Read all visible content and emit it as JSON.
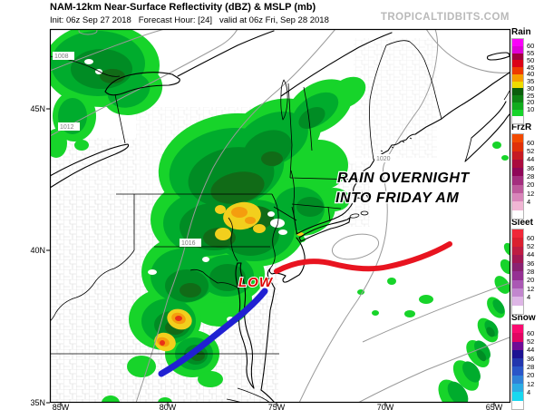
{
  "header": {
    "title": "NAM-12km Near-Surface Reflectivity (dBZ) & MSLP (mb)",
    "init_line": "Init: 06z Sep 27 2018   Forecast Hour: [24]   valid at 06z Fri, Sep 28 2018",
    "watermark": "TROPICALTIDBITS.COM"
  },
  "map": {
    "annotations": {
      "rain_line1": "RAIN OVERNIGHT",
      "rain_line2": "INTO FRIDAY AM",
      "low_label": "LOW"
    },
    "pressure_labels": [
      "1008",
      "1012",
      "1016",
      "1020"
    ],
    "front_colors": {
      "warm": "#e81420",
      "cold": "#2020d2"
    }
  },
  "axes": {
    "lat": [
      "45N",
      "40N",
      "35N"
    ],
    "lon": [
      "85W",
      "80W",
      "75W",
      "70W",
      "65W"
    ]
  },
  "legend": {
    "sections": [
      {
        "title": "Rain",
        "labels": [
          "60",
          "55",
          "50",
          "45",
          "40",
          "35",
          "30",
          "25",
          "20",
          "10"
        ],
        "colors": [
          "#FA00FA",
          "#DE00D8",
          "#A2003E",
          "#DC0016",
          "#EE3A00",
          "#F79E00",
          "#EFDC00",
          "#0B5E0C",
          "#0E8414",
          "#11AC1E",
          "#17D42A",
          "#FFFFFF"
        ]
      },
      {
        "title": "FrzR",
        "labels": [
          "60",
          "52",
          "44",
          "36",
          "28",
          "20",
          "12",
          "4"
        ],
        "colors": [
          "#F24A00",
          "#E03008",
          "#C61A22",
          "#AA0B3E",
          "#8F0658",
          "#A42E7E",
          "#BE5A9C",
          "#D886BA",
          "#F0B6D4",
          "#FFFFFF"
        ]
      },
      {
        "title": "Sleet",
        "labels": [
          "60",
          "52",
          "44",
          "36",
          "28",
          "20",
          "12",
          "4"
        ],
        "colors": [
          "#F02838",
          "#DA2030",
          "#BE1C42",
          "#A21854",
          "#8A2272",
          "#953093",
          "#AA58B4",
          "#C286CE",
          "#DEB6E6",
          "#FFFFFF"
        ]
      },
      {
        "title": "Snow",
        "labels": [
          "60",
          "52",
          "44",
          "36",
          "28",
          "20",
          "12",
          "4"
        ],
        "colors": [
          "#FA0A70",
          "#E00562",
          "#6E0C96",
          "#1C1292",
          "#2236AE",
          "#2A56C8",
          "#3082D8",
          "#2CACE4",
          "#18D8F0",
          "#FFFFFF"
        ]
      }
    ]
  }
}
